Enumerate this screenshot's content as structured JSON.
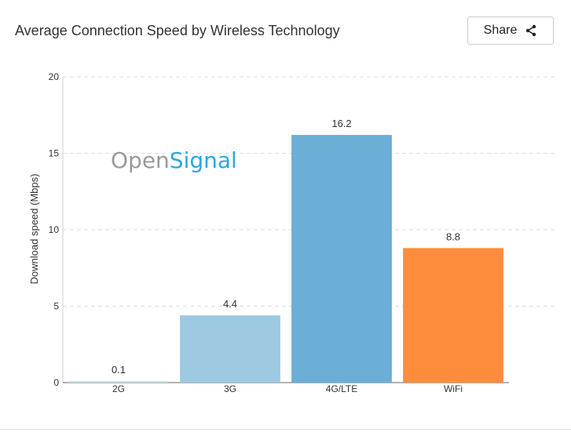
{
  "header": {
    "title": "Average Connection Speed by Wireless Technology",
    "share_label": "Share"
  },
  "watermark": {
    "part1": "Open",
    "part2": "Signal"
  },
  "chart_data": {
    "type": "bar",
    "title": "Average Connection Speed by Wireless Technology",
    "xlabel": "",
    "ylabel": "Download speed (Mbps)",
    "categories": [
      "2G",
      "3G",
      "4G/LTE",
      "WiFi"
    ],
    "values": [
      0.1,
      4.4,
      16.2,
      8.8
    ],
    "data_labels": [
      "0.1",
      "4.4",
      "16.2",
      "8.8"
    ],
    "colors": [
      "#c6e0ef",
      "#9ecae1",
      "#6baed6",
      "#fd8d3c"
    ],
    "ylim": [
      0,
      20
    ],
    "yticks": [
      0,
      5,
      10,
      15,
      20
    ],
    "grid": true,
    "legend": "none"
  }
}
